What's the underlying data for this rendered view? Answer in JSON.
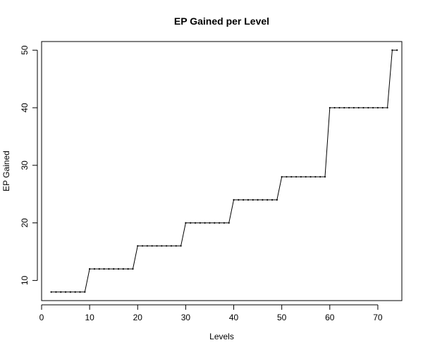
{
  "chart_data": {
    "type": "line",
    "title": "EP Gained per Level",
    "xlabel": "Levels",
    "ylabel": "EP Gained",
    "xlim": [
      0,
      75
    ],
    "ylim": [
      6.5,
      51.5
    ],
    "x_ticks": [
      0,
      10,
      20,
      30,
      40,
      50,
      60,
      70
    ],
    "y_ticks": [
      10,
      20,
      30,
      40,
      50
    ],
    "grid": false,
    "series": [
      {
        "x": [
          2,
          3,
          4,
          5,
          6,
          7,
          8,
          9,
          10,
          11,
          12,
          13,
          14,
          15,
          16,
          17,
          18,
          19,
          20,
          21,
          22,
          23,
          24,
          25,
          26,
          27,
          28,
          29,
          30,
          31,
          32,
          33,
          34,
          35,
          36,
          37,
          38,
          39,
          40,
          41,
          42,
          43,
          44,
          45,
          46,
          47,
          48,
          49,
          50,
          51,
          52,
          53,
          54,
          55,
          56,
          57,
          58,
          59,
          60,
          61,
          62,
          63,
          64,
          65,
          66,
          67,
          68,
          69,
          70,
          71,
          72,
          73,
          74
        ],
        "y": [
          8,
          8,
          8,
          8,
          8,
          8,
          8,
          8,
          12,
          12,
          12,
          12,
          12,
          12,
          12,
          12,
          12,
          12,
          16,
          16,
          16,
          16,
          16,
          16,
          16,
          16,
          16,
          16,
          20,
          20,
          20,
          20,
          20,
          20,
          20,
          20,
          20,
          20,
          24,
          24,
          24,
          24,
          24,
          24,
          24,
          24,
          24,
          24,
          28,
          28,
          28,
          28,
          28,
          28,
          28,
          28,
          28,
          28,
          40,
          40,
          40,
          40,
          40,
          40,
          40,
          40,
          40,
          40,
          40,
          40,
          40,
          50,
          50
        ]
      }
    ]
  }
}
